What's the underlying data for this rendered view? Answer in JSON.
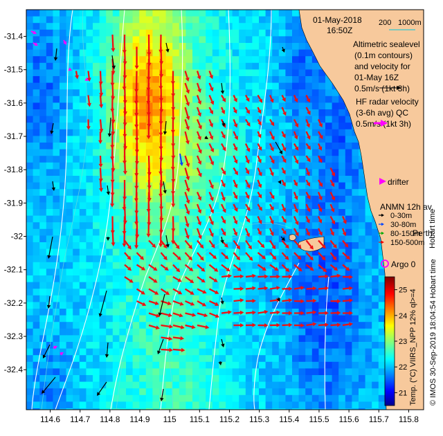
{
  "header": {
    "date": "01-May-2018",
    "time": "16:50Z"
  },
  "scale_bar": {
    "left": "200",
    "right": "1000m",
    "color": "#55c8c8"
  },
  "legend": {
    "altimetric": [
      "Altimetric sealevel",
      "(0.1m contours)",
      "and velocity for",
      "01-May 16Z",
      "0.5m/s (1kt 3h)"
    ],
    "hf_radar": [
      "HF radar velocity",
      "(3-6h avg) QC",
      "0.5m/s (1kt 3h)"
    ],
    "drifter": "drifter",
    "anmn": {
      "title": "ANMN 12h av.",
      "items": [
        {
          "label": "0-30m",
          "color": "#000000"
        },
        {
          "label": "30-80m",
          "color": "#0044ff"
        },
        {
          "label": "80-150m",
          "color": "#00aa00"
        },
        {
          "label": "150-500m",
          "color": "#ff0000"
        }
      ]
    },
    "argo": "Argo 0",
    "place": "Perth",
    "hobart": "Hobart time"
  },
  "colorbar": {
    "label": "Temp. (°C) VIIRS_NPP 12% ql>=4",
    "ticks": [
      "21",
      "22",
      "23",
      "24",
      "25"
    ],
    "min": 20.5,
    "max": 25.5
  },
  "credit": "© IMOS 30-Sep-2019 18:04:54 Hobart time",
  "colors": {
    "land": "#f7c99c",
    "radar_arrow": "#ee1111",
    "drifter": "#ff00ff",
    "altimetry_arrow": "#000000",
    "contour": "#ffffff",
    "isobath": "#66dddd"
  },
  "chart_data": {
    "type": "heatmap",
    "x_ticks": [
      "114.6",
      "114.7",
      "114.8",
      "114.9",
      "115",
      "115.1",
      "115.2",
      "115.3",
      "115.4",
      "115.5",
      "115.6",
      "115.7",
      "115.8"
    ],
    "y_ticks": [
      "-31.4",
      "-31.5",
      "-31.6",
      "-31.7",
      "-31.8",
      "-31.9",
      "-32",
      "-32.1",
      "-32.2",
      "-32.3",
      "-32.4"
    ],
    "xlim": [
      114.52,
      115.85
    ],
    "ylim": [
      -32.52,
      -31.32
    ],
    "colormap": "jet",
    "temperature_range": [
      20.5,
      25.5
    ]
  }
}
